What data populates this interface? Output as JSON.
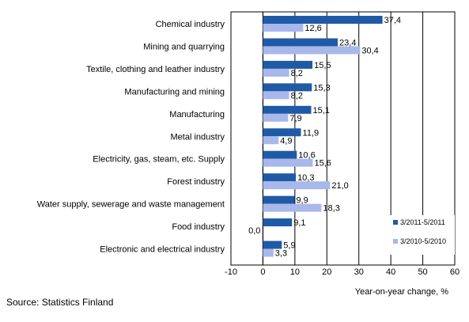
{
  "chart_data": {
    "type": "bar",
    "orientation": "horizontal",
    "xlabel": "Year-on-year change, %",
    "xlim": [
      -10,
      60
    ],
    "xticks": [
      "-10",
      "0",
      "10",
      "20",
      "30",
      "40",
      "50",
      "60"
    ],
    "grid": "vertical gridlines",
    "legend_placement": "bottom-right",
    "categories": [
      "Chemical industry",
      "Mining and quarrying",
      "Textile, clothing and leather industry",
      "Manufacturing and mining",
      "Manufacturing",
      "Metal industry",
      "Electricity, gas, steam, etc. Supply",
      "Forest industry",
      "Water supply, sewerage and waste management",
      "Food industry",
      "Electronic and electrical industry"
    ],
    "series": [
      {
        "name": "3/2011-5/2011",
        "color": "#1f5aa6",
        "values": [
          37.4,
          23.4,
          15.5,
          15.3,
          15.1,
          11.9,
          10.6,
          10.3,
          9.9,
          9.1,
          5.9
        ],
        "labels": [
          "37,4",
          "23,4",
          "15,5",
          "15,3",
          "15,1",
          "11,9",
          "10,6",
          "10,3",
          "9,9",
          "9,1",
          "5,9"
        ]
      },
      {
        "name": "3/2010-5/2010",
        "color": "#a9b8ea",
        "values": [
          12.6,
          30.4,
          8.2,
          8.2,
          7.9,
          4.9,
          15.6,
          21.0,
          18.3,
          0.0,
          3.3
        ],
        "labels": [
          "12,6",
          "30,4",
          "8,2",
          "8,2",
          "7,9",
          "4,9",
          "15,6",
          "21,0",
          "18,3",
          "0,0",
          "3,3"
        ]
      }
    ]
  },
  "source": "Source: Statistics Finland"
}
